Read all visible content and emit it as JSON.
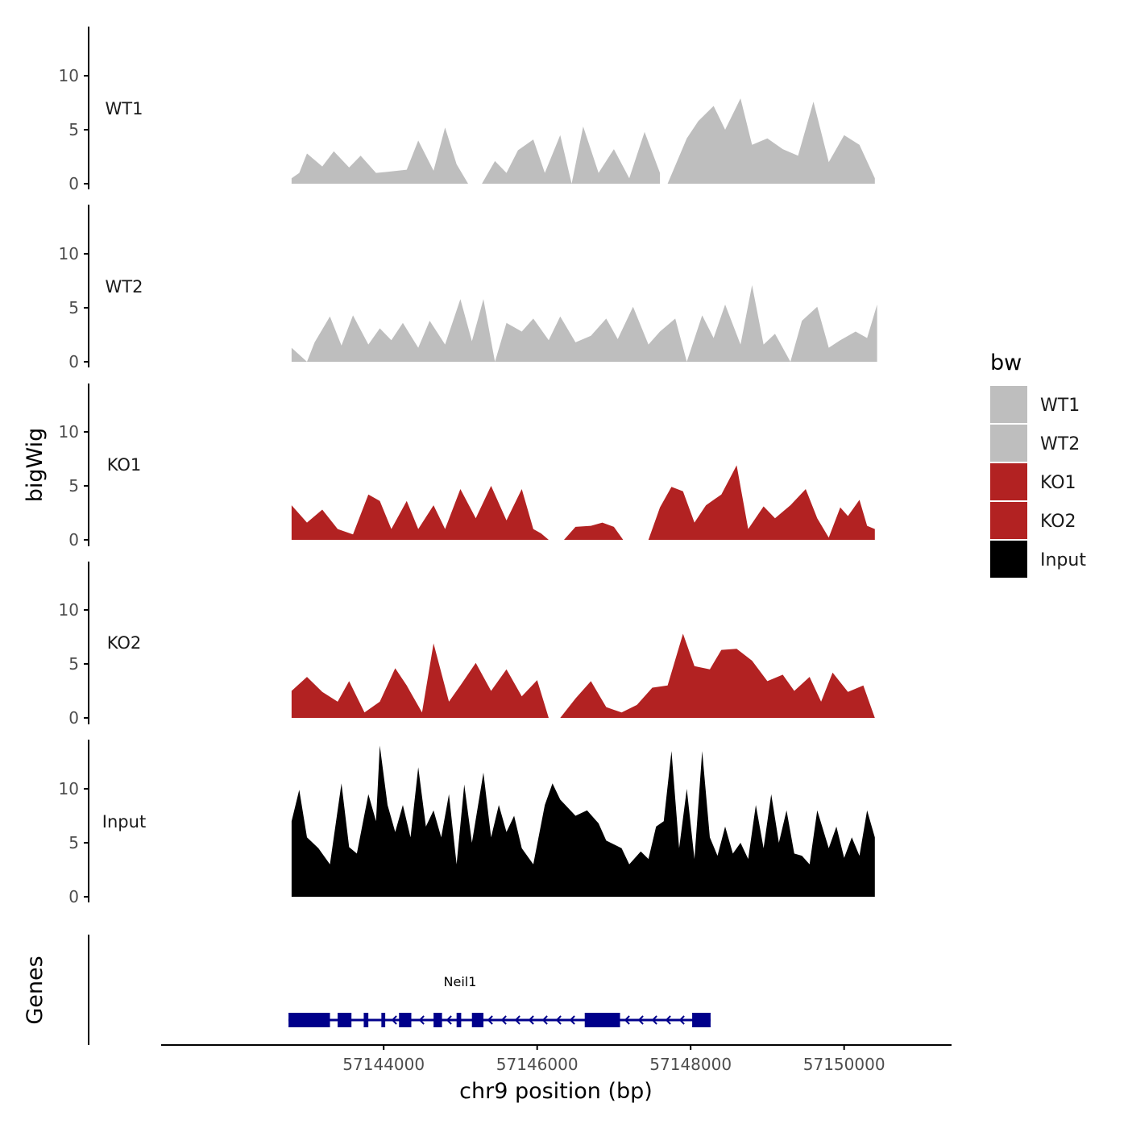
{
  "chart_data": {
    "type": "area",
    "y_axis_title": "bigWig",
    "genes_axis_title": "Genes",
    "x_axis_title": "chr9 position (bp)",
    "xlim": [
      57141100,
      57151400
    ],
    "ylim": [
      0,
      14
    ],
    "y_ticks": [
      "0",
      "5",
      "10"
    ],
    "x_ticks": [
      57144000,
      57146000,
      57148000,
      57150000
    ],
    "x_tick_labels": [
      "57144000",
      "57146000",
      "57148000",
      "57150000"
    ],
    "tracks": [
      {
        "name": "WT1",
        "color": "#bebebe",
        "segments": [
          {
            "x": [
              57142800,
              57142900,
              57143000,
              57143200,
              57143350,
              57143550,
              57143700,
              57143900,
              57144050,
              57144300,
              57144450,
              57144650,
              57144800,
              57144950,
              57145100
            ],
            "y": [
              0.5,
              1.0,
              2.8,
              1.6,
              3.0,
              1.5,
              2.6,
              1.0,
              1.1,
              1.3,
              4.0,
              1.2,
              5.2,
              1.8,
              0.0
            ]
          },
          {
            "x": [
              57145280,
              57145450,
              57145600,
              57145750,
              57145950,
              57146100,
              57146300,
              57146450,
              57146600,
              57146800,
              57147000,
              57147200,
              57147400,
              57147600
            ],
            "y": [
              0.0,
              2.1,
              1.0,
              3.1,
              4.1,
              1.0,
              4.5,
              0.0,
              5.3,
              1.0,
              3.2,
              0.5,
              4.8,
              1.0
            ]
          },
          {
            "x": [
              57147700,
              57147950,
              57148100,
              57148300,
              57148450,
              57148650,
              57148800,
              57149000,
              57149200,
              57149400,
              57149600,
              57149800,
              57150000,
              57150200,
              57150400
            ],
            "y": [
              0.0,
              4.2,
              5.8,
              7.2,
              5.0,
              7.9,
              3.6,
              4.2,
              3.2,
              2.6,
              7.6,
              2.0,
              4.5,
              3.6,
              0.5
            ]
          }
        ]
      },
      {
        "name": "WT2",
        "color": "#bebebe",
        "segments": [
          {
            "x": [
              57142800,
              57143000,
              57143100,
              57143300,
              57143450,
              57143600,
              57143800,
              57143950,
              57144100,
              57144250,
              57144450,
              57144600,
              57144800,
              57145000,
              57145150,
              57145300,
              57145450,
              57145600,
              57145800,
              57145950,
              57146150,
              57146300,
              57146500,
              57146700,
              57146900,
              57147050,
              57147250,
              57147450,
              57147600,
              57147800,
              57147950,
              57148150,
              57148300,
              57148450,
              57148650,
              57148800,
              57148950,
              57149100,
              57149300,
              57149450,
              57149650,
              57149800,
              57149950,
              57150150,
              57150300,
              57150430
            ],
            "y": [
              1.3,
              0.0,
              1.8,
              4.2,
              1.5,
              4.3,
              1.6,
              3.1,
              2.0,
              3.6,
              1.3,
              3.8,
              1.6,
              5.8,
              1.9,
              5.8,
              0.0,
              3.6,
              2.8,
              4.0,
              2.0,
              4.2,
              1.8,
              2.4,
              4.0,
              2.1,
              5.1,
              1.6,
              2.8,
              4.0,
              0.0,
              4.3,
              2.2,
              5.3,
              1.6,
              7.1,
              1.6,
              2.6,
              0.0,
              3.8,
              5.1,
              1.3,
              2.0,
              2.8,
              2.2,
              5.3
            ]
          }
        ]
      },
      {
        "name": "KO1",
        "color": "#b22222",
        "segments": [
          {
            "x": [
              57142800,
              57143000,
              57143200,
              57143400,
              57143600,
              57143800,
              57143950,
              57144100,
              57144300,
              57144450,
              57144650,
              57144800,
              57145000,
              57145200,
              57145400,
              57145600,
              57145800,
              57145950,
              57146050,
              57146150
            ],
            "y": [
              3.2,
              1.6,
              2.8,
              1.0,
              0.5,
              4.2,
              3.6,
              1.0,
              3.6,
              1.0,
              3.2,
              1.0,
              4.7,
              2.0,
              5.0,
              1.8,
              4.7,
              1.0,
              0.6,
              0.0
            ]
          },
          {
            "x": [
              57146350,
              57146500,
              57146700,
              57146850,
              57147000,
              57147120
            ],
            "y": [
              0.0,
              1.2,
              1.3,
              1.6,
              1.2,
              0.0
            ]
          },
          {
            "x": [
              57147450,
              57147600,
              57147750,
              57147900,
              57148050,
              57148200,
              57148400,
              57148600,
              57148750,
              57148950,
              57149100,
              57149300,
              57149500,
              57149650,
              57149800,
              57149950,
              57150050,
              57150200,
              57150300,
              57150400
            ],
            "y": [
              0.0,
              3.0,
              4.9,
              4.5,
              1.6,
              3.2,
              4.2,
              6.9,
              1.0,
              3.1,
              2.0,
              3.2,
              4.7,
              2.0,
              0.2,
              3.0,
              2.2,
              3.7,
              1.3,
              1.0
            ]
          }
        ]
      },
      {
        "name": "KO2",
        "color": "#b22222",
        "segments": [
          {
            "x": [
              57142800,
              57143000,
              57143200,
              57143400,
              57143550,
              57143750,
              57143950,
              57144150,
              57144300,
              57144500,
              57144650,
              57144850,
              57145000,
              57145200,
              57145400,
              57145600,
              57145800,
              57146000,
              57146150
            ],
            "y": [
              2.5,
              3.8,
              2.4,
              1.5,
              3.4,
              0.5,
              1.5,
              4.6,
              3.0,
              0.5,
              6.9,
              1.5,
              3.0,
              5.1,
              2.5,
              4.5,
              2.0,
              3.5,
              0.0
            ]
          },
          {
            "x": [
              57146300,
              57146500,
              57146700,
              57146900,
              57147100,
              57147300,
              57147500,
              57147700,
              57147900,
              57148050,
              57148250,
              57148400,
              57148600,
              57148800,
              57149000,
              57149200,
              57149350,
              57149550,
              57149700,
              57149850,
              57150050,
              57150250,
              57150400
            ],
            "y": [
              0.0,
              1.8,
              3.4,
              1.0,
              0.5,
              1.2,
              2.8,
              3.0,
              7.8,
              4.8,
              4.5,
              6.3,
              6.4,
              5.3,
              3.4,
              4.0,
              2.5,
              3.8,
              1.5,
              4.2,
              2.4,
              3.0,
              0.0
            ]
          }
        ]
      },
      {
        "name": "Input",
        "color": "#000000",
        "segments": [
          {
            "x": [
              57142800,
              57142900,
              57143000,
              57143150,
              57143300,
              57143450,
              57143550,
              57143650,
              57143800,
              57143900,
              57143950,
              57144050,
              57144150,
              57144250,
              57144350,
              57144450,
              57144550,
              57144650,
              57144750,
              57144850,
              57144950,
              57145050,
              57145150,
              57145300,
              57145400,
              57145500,
              57145600,
              57145700,
              57145800,
              57145950,
              57146100,
              57146200,
              57146300,
              57146500,
              57146650,
              57146800,
              57146900,
              57147100,
              57147200,
              57147350,
              57147450,
              57147550,
              57147650,
              57147750,
              57147850,
              57147950,
              57148050,
              57148150,
              57148250,
              57148350,
              57148450,
              57148550,
              57148650,
              57148750,
              57148850,
              57148950,
              57149050,
              57149150,
              57149250,
              57149350,
              57149450,
              57149550,
              57149650,
              57149800,
              57149900,
              57150000,
              57150100,
              57150200,
              57150300,
              57150400
            ],
            "y": [
              7.0,
              9.9,
              5.5,
              4.5,
              3.0,
              10.5,
              4.6,
              4.0,
              9.5,
              7.0,
              14.0,
              8.5,
              6.0,
              8.5,
              5.5,
              12.0,
              6.5,
              8.0,
              5.5,
              9.5,
              3.0,
              10.4,
              5.0,
              11.5,
              5.5,
              8.5,
              6.0,
              7.5,
              4.5,
              3.0,
              8.5,
              10.5,
              9.0,
              7.5,
              8.0,
              6.8,
              5.2,
              4.5,
              3.0,
              4.2,
              3.5,
              6.5,
              7.0,
              13.5,
              4.5,
              10.0,
              3.5,
              13.5,
              5.5,
              3.8,
              6.5,
              4.0,
              5.0,
              3.5,
              8.5,
              4.5,
              9.5,
              5.0,
              8.0,
              4.0,
              3.8,
              3.0,
              8.0,
              4.5,
              6.5,
              3.6,
              5.5,
              3.8,
              8.0,
              5.5
            ]
          }
        ]
      }
    ],
    "legend": {
      "title": "bw",
      "items": [
        {
          "label": "WT1",
          "color": "#bebebe"
        },
        {
          "label": "WT2",
          "color": "#bebebe"
        },
        {
          "label": "KO1",
          "color": "#b22222"
        },
        {
          "label": "KO2",
          "color": "#b22222"
        },
        {
          "label": "Input",
          "color": "#000000"
        }
      ]
    },
    "gene": {
      "name": "Neil1",
      "strand": "-",
      "color": "#00008b",
      "start": 57142760,
      "end": 57148260,
      "exons": [
        {
          "start": 57142760,
          "end": 57143300
        },
        {
          "start": 57143400,
          "end": 57143580
        },
        {
          "start": 57143740,
          "end": 57143800
        },
        {
          "start": 57143970,
          "end": 57144020
        },
        {
          "start": 57144200,
          "end": 57144360
        },
        {
          "start": 57144650,
          "end": 57144760
        },
        {
          "start": 57144950,
          "end": 57145010
        },
        {
          "start": 57145150,
          "end": 57145300
        },
        {
          "start": 57146620,
          "end": 57147080
        },
        {
          "start": 57148020,
          "end": 57148260
        }
      ]
    }
  }
}
